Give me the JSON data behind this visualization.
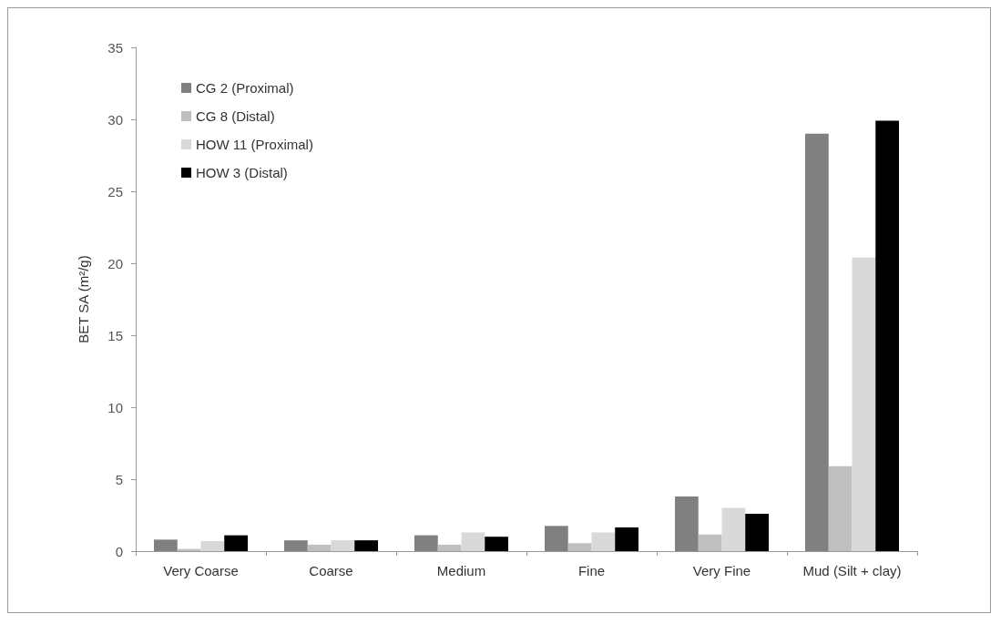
{
  "chart_data": {
    "type": "bar",
    "ylabel": "BET SA (m²/g)",
    "categories": [
      "Very Coarse",
      "Coarse",
      "Medium",
      "Fine",
      "Very Fine",
      "Mud (Silt + clay)"
    ],
    "series": [
      {
        "name": "CG 2 (Proximal)",
        "color": "#808080",
        "values": [
          0.8,
          0.75,
          1.1,
          1.75,
          3.8,
          29.0
        ]
      },
      {
        "name": "CG 8 (Distal)",
        "color": "#bfbfbf",
        "values": [
          0.15,
          0.45,
          0.45,
          0.55,
          1.15,
          5.9
        ]
      },
      {
        "name": "HOW 11 (Proximal)",
        "color": "#d9d9d9",
        "values": [
          0.7,
          0.75,
          1.3,
          1.3,
          3.0,
          20.4
        ]
      },
      {
        "name": "HOW 3 (Distal)",
        "color": "#000000",
        "values": [
          1.1,
          0.75,
          1.0,
          1.65,
          2.6,
          29.9
        ]
      }
    ],
    "ylim": [
      0,
      35
    ],
    "yticks": [
      0,
      5,
      10,
      15,
      20,
      25,
      30,
      35
    ],
    "grid": false,
    "legend": "top left"
  }
}
